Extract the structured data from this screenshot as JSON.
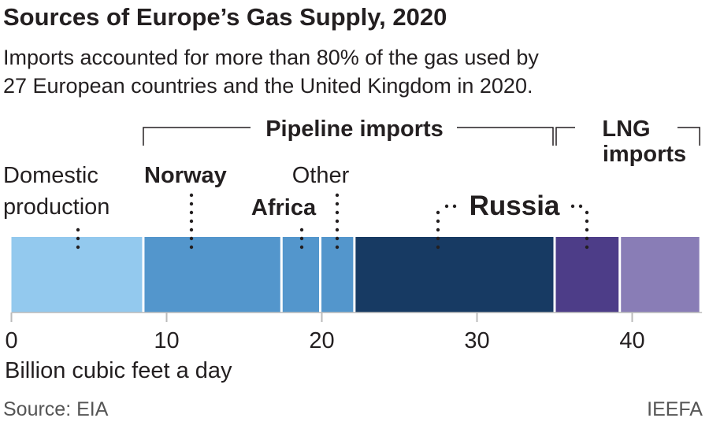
{
  "chart_data": {
    "type": "bar",
    "orientation": "horizontal-stacked",
    "title": "Sources of Europe’s Gas Supply, 2020",
    "subtitle": [
      "Imports accounted for more than 80% of the gas used by",
      "27 European countries and the United Kingdom in 2020."
    ],
    "xlabel": "Billion cubic feet a day",
    "xlim": [
      0,
      44.5
    ],
    "xticks": [
      0,
      10,
      20,
      30,
      40
    ],
    "groups": [
      {
        "label": "Pipeline imports",
        "from": 8.5,
        "to": 35.0
      },
      {
        "label": "LNG imports",
        "from": 35.0,
        "to": 44.4
      }
    ],
    "segments": [
      {
        "name": "Domestic production",
        "label_lines": [
          "Domestic",
          "production"
        ],
        "value": 8.5,
        "color": "#93c9ee",
        "bold": false
      },
      {
        "name": "Norway",
        "label_lines": [
          "Norway"
        ],
        "value": 8.9,
        "color": "#5396cc",
        "bold": true
      },
      {
        "name": "Africa",
        "label_lines": [
          "Africa"
        ],
        "value": 2.5,
        "color": "#5396cc",
        "bold": true
      },
      {
        "name": "Other",
        "label_lines": [
          "Other"
        ],
        "value": 2.2,
        "color": "#5396cc",
        "bold": false
      },
      {
        "name": "Russia",
        "label_lines": [
          "Russia"
        ],
        "value": 12.9,
        "color": "#173a63",
        "bold": true
      },
      {
        "name": "Russia LNG",
        "label_lines": [],
        "value": 4.2,
        "color": "#4d3d88",
        "bold": false
      },
      {
        "name": "Other LNG",
        "label_lines": [],
        "value": 5.2,
        "color": "#897db6",
        "bold": false
      }
    ],
    "grid": false
  },
  "footer": {
    "source": "Source: EIA",
    "credit": "IEEFA"
  }
}
